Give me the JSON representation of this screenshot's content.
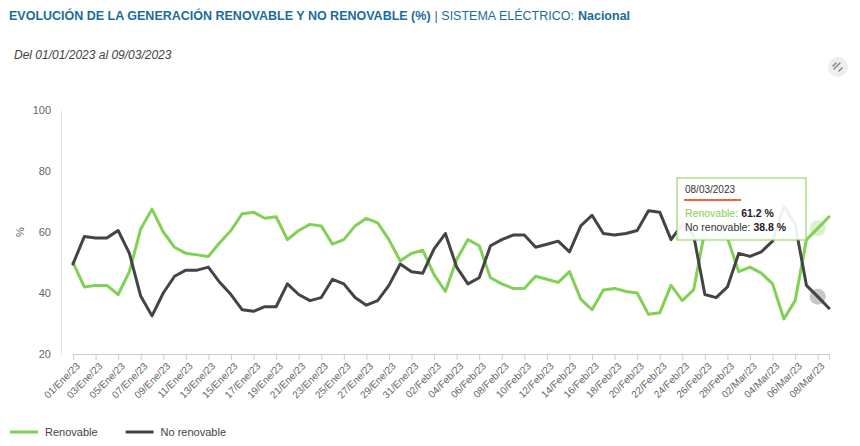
{
  "chart_data": {
    "type": "line",
    "title": "EVOLUCIÓN DE LA GENERACIÓN RENOVABLE Y NO RENOVABLE (%)",
    "subtitle": "Del 01/01/2023 al 09/03/2023",
    "y_label": "%",
    "categories": [
      "01/Ene/23",
      null,
      "03/Ene/23",
      null,
      "05/Ene/23",
      null,
      "07/Ene/23",
      null,
      "09/Ene/23",
      null,
      "11/Ene/23",
      null,
      "13/Ene/23",
      null,
      "15/Ene/23",
      null,
      "17/Ene/23",
      null,
      "19/Ene/23",
      null,
      "21/Ene/23",
      null,
      "23/Ene/23",
      null,
      "25/Ene/23",
      null,
      "27/Ene/23",
      null,
      "29/Ene/23",
      null,
      "31/Ene/23",
      null,
      "02/Feb/23",
      null,
      "04/Feb/23",
      null,
      "06/Feb/23",
      null,
      "08/Feb/23",
      null,
      "10/Feb/23",
      null,
      "12/Feb/23",
      null,
      "14/Feb/23",
      null,
      "16/Feb/23",
      null,
      "18/Feb/23",
      null,
      "20/Feb/23",
      null,
      "22/Feb/23",
      null,
      "24/Feb/23",
      null,
      "26/Feb/23",
      null,
      "28/Feb/23",
      null,
      "02/Mar/23",
      null,
      "04/Mar/23",
      null,
      "06/Mar/23",
      null,
      "08/Mar/23",
      null
    ],
    "series": [
      {
        "name": "Renovable",
        "color": "#80d155",
        "values": [
          50,
          42,
          42.5,
          42.5,
          39.5,
          47,
          61,
          67.5,
          60,
          55,
          53,
          52.5,
          52,
          56.5,
          60.5,
          66,
          66.5,
          64.5,
          65,
          57.5,
          60.5,
          62.5,
          62,
          56,
          57.5,
          62,
          64.5,
          63,
          57.5,
          50.5,
          53,
          54,
          46,
          40.5,
          51,
          57.5,
          55.5,
          45,
          43,
          41.5,
          41.5,
          45.5,
          44.5,
          43.5,
          47,
          38,
          34.5,
          41,
          41.5,
          40.5,
          40,
          33,
          33.5,
          42.5,
          37.5,
          41,
          60.5,
          61.5,
          58,
          47,
          48.5,
          46.5,
          43,
          31.5,
          37.5,
          57.5,
          61.2,
          65
        ]
      },
      {
        "name": "No renovable",
        "color": "#444444",
        "values": [
          49.5,
          58.5,
          58,
          58,
          60.5,
          53,
          39,
          32.5,
          40,
          45.5,
          47.5,
          47.5,
          48.5,
          43.5,
          39.5,
          34.5,
          34,
          35.5,
          35.5,
          43,
          39.5,
          37.5,
          38.5,
          44.5,
          43,
          38.5,
          36,
          37.5,
          42.5,
          49.5,
          47,
          46.5,
          54.5,
          59.5,
          48.5,
          43,
          45,
          55.5,
          57.5,
          59,
          59,
          55,
          56,
          57,
          53.5,
          62,
          65.5,
          59.5,
          59,
          59.5,
          60.5,
          67,
          66.5,
          57.5,
          62.5,
          59,
          39.5,
          38.5,
          42,
          53,
          52,
          53.5,
          57,
          68.5,
          62.5,
          42.5,
          38.8,
          35
        ]
      }
    ],
    "ylim": [
      20,
      100
    ],
    "yticks": [
      20,
      40,
      60,
      80,
      100
    ],
    "grid": false,
    "legend": "bottom-left",
    "annotations": [
      {
        "label": "| SISTEMA ELÉCTRICO:",
        "text": "Nacional"
      },
      {
        "title": "08/03/2023",
        "lines": [
          {
            "label": "Renovable:",
            "value": "61.2 %"
          },
          {
            "label": "No renovable:",
            "value": "38.8 %"
          }
        ]
      }
    ]
  }
}
